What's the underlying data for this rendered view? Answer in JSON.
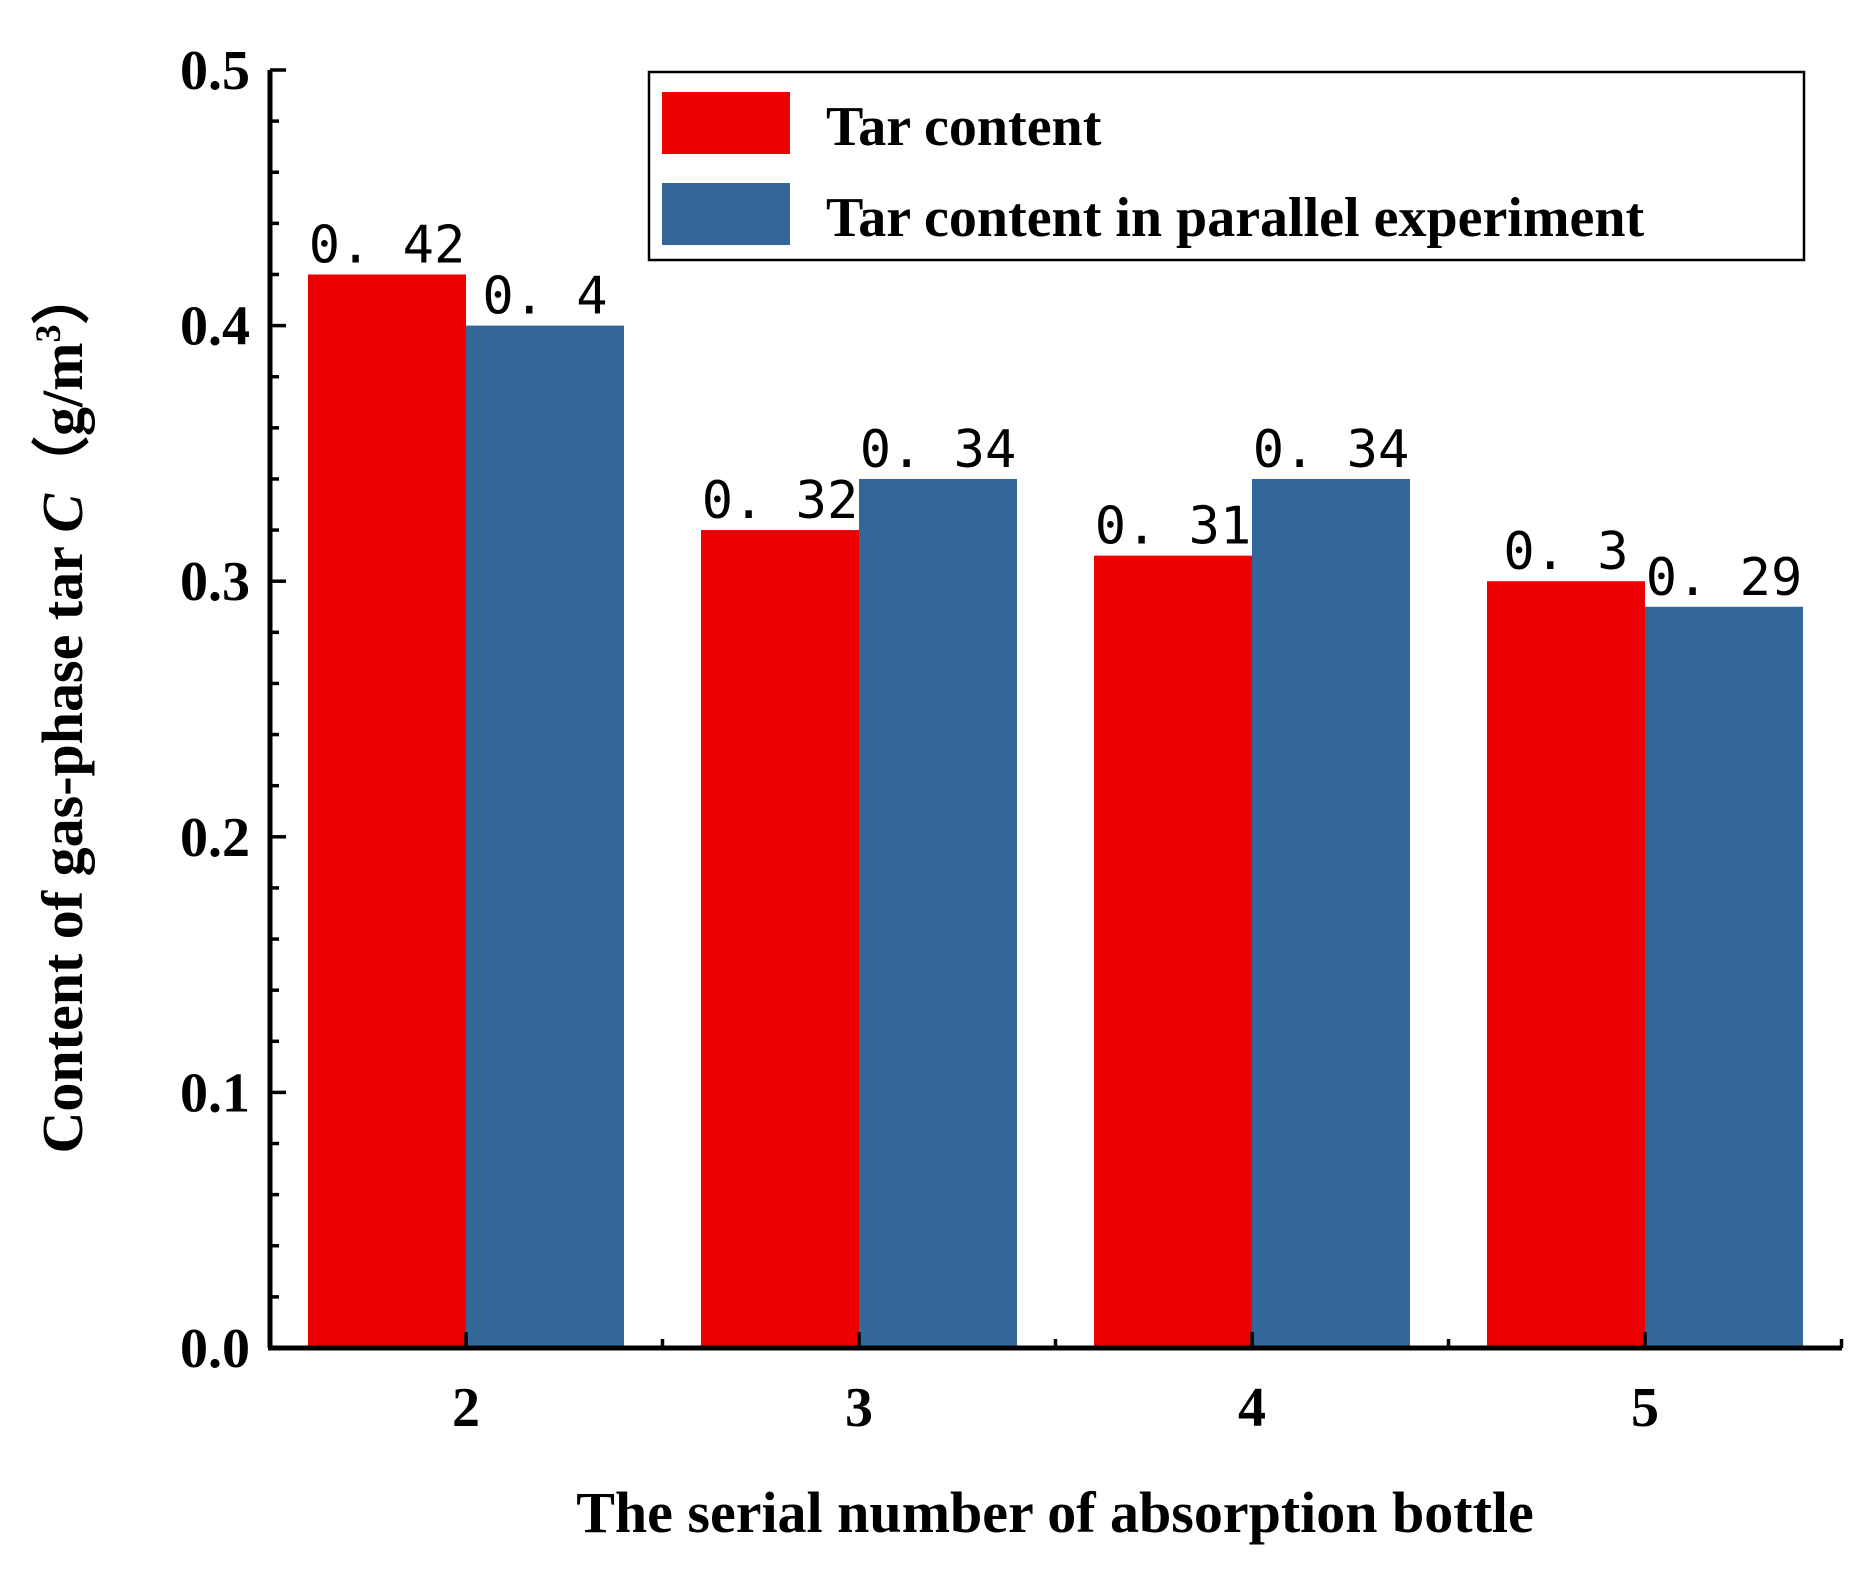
{
  "chart_data": {
    "type": "bar",
    "categories": [
      "2",
      "3",
      "4",
      "5"
    ],
    "series": [
      {
        "name": "Tar content",
        "values": [
          0.42,
          0.32,
          0.31,
          0.3
        ],
        "labels": [
          "0. 42",
          "0. 32",
          "0. 31",
          "0. 3"
        ],
        "color": "#ee0000"
      },
      {
        "name": "Tar content in parallel experiment",
        "values": [
          0.4,
          0.34,
          0.34,
          0.29
        ],
        "labels": [
          "0. 4",
          "0. 34",
          "0. 34",
          "0. 29"
        ],
        "color": "#336699"
      }
    ],
    "xlabel": "The serial number of absorption bottle",
    "ylabel": {
      "prefix": "Content of gas-phase tar ",
      "variable": "C",
      "unit_open": "（g/m",
      "unit_sup": "3",
      "unit_close": "）"
    },
    "ylim": [
      0,
      0.5
    ],
    "yticks": [
      "0.0",
      "0.1",
      "0.2",
      "0.3",
      "0.4",
      "0.5"
    ],
    "legend_position": "top-right",
    "grid": false
  }
}
